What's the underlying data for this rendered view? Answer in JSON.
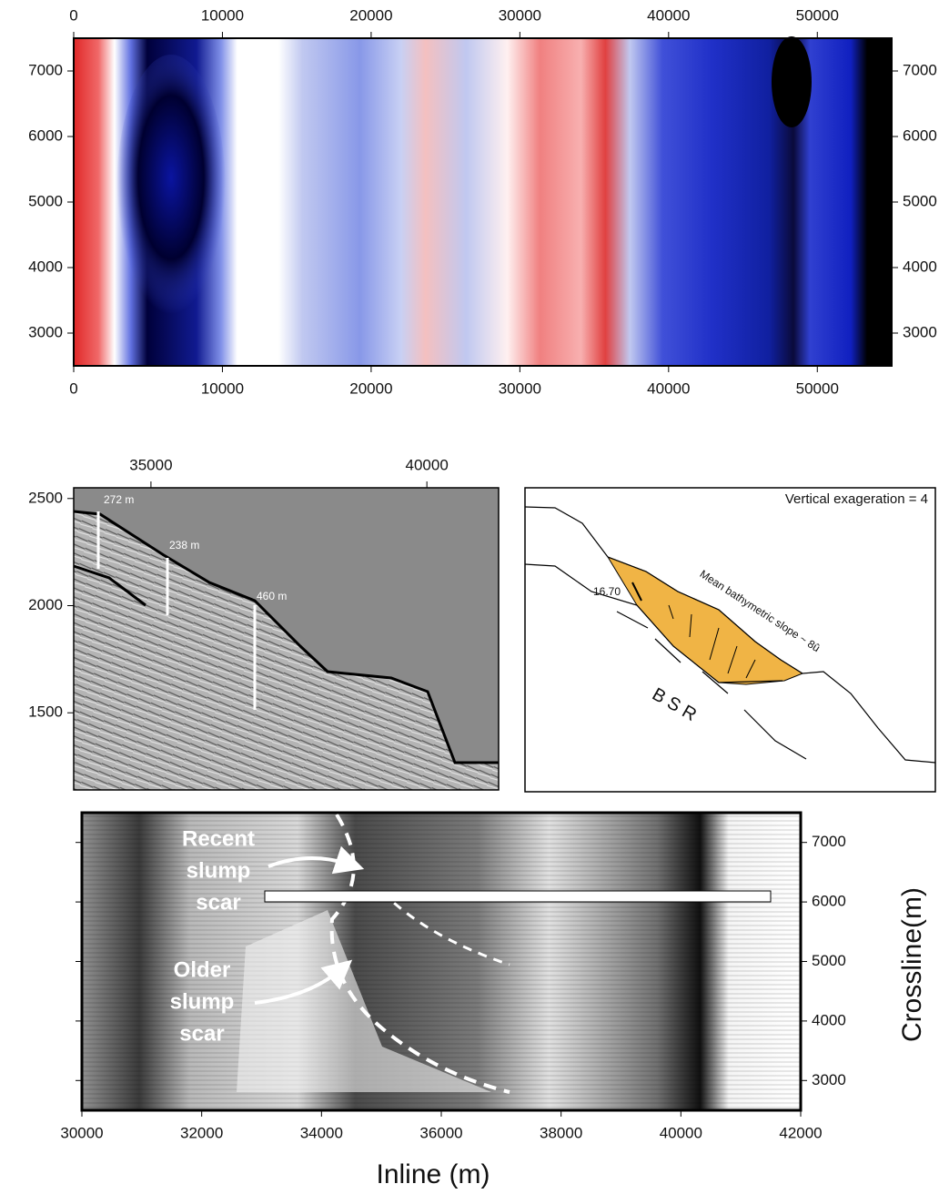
{
  "panels": [
    {
      "xlim": [
        0,
        55000
      ],
      "xticks": [
        0,
        10000,
        20000,
        30000,
        40000,
        50000
      ],
      "ylim": [
        2500,
        7500
      ],
      "yticks": [
        3000,
        4000,
        5000,
        6000,
        7000
      ]
    },
    {
      "xlim": [
        33600,
        41300
      ],
      "xticks": [
        35000,
        40000
      ],
      "ylim": [
        1140,
        2550
      ],
      "yticks": [
        1500,
        2000,
        2500
      ],
      "annotations": [
        "272 m",
        "238 m",
        "460 m"
      ]
    },
    {
      "caption": "Vertical exageration = 4",
      "angle_label": "16.70",
      "slope_label": "Mean bathymetric slope ~ 8û",
      "bsr_label": "B S R"
    },
    {
      "xlim": [
        30000,
        42000
      ],
      "xticks": [
        30000,
        32000,
        34000,
        36000,
        38000,
        40000,
        42000
      ],
      "ylim": [
        2500,
        7500
      ],
      "yticks": [
        3000,
        4000,
        5000,
        6000,
        7000
      ],
      "xlabel": "Inline (m)",
      "ylabel": "Crossline(m)",
      "recent_label": [
        "Recent",
        "slump",
        "scar"
      ],
      "older_label": [
        "Older",
        "slump",
        "scar"
      ]
    }
  ]
}
